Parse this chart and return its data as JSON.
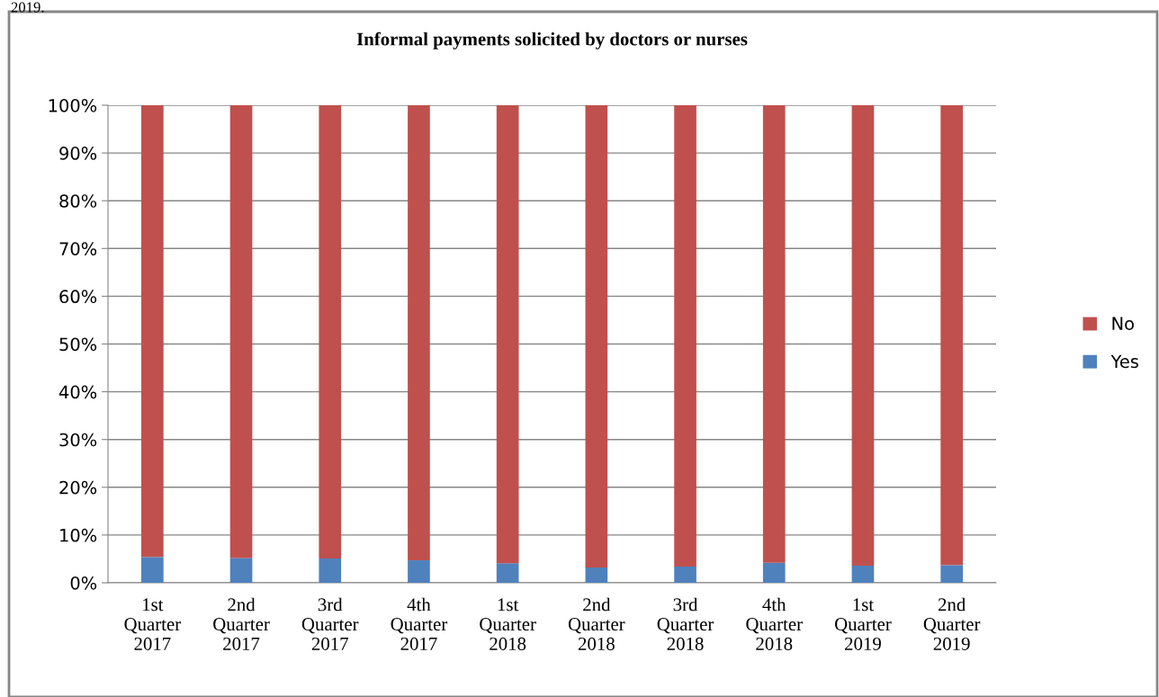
{
  "chart_data": {
    "type": "bar",
    "title": "Informal payments solicited by doctors or nurses",
    "categories": [
      "1st\nQuarter\n2017",
      "2nd\nQuarter\n2017",
      "3rd\nQuarter\n2017",
      "4th\nQuarter\n2017",
      "1st\nQuarter\n2018",
      "2nd\nQuarter\n2018",
      "3rd\nQuarter\n2018",
      "4th\nQuarter\n2018",
      "1st\nQuarter\n2019",
      "2nd\nQuarter\n2019"
    ],
    "stacked": true,
    "series": [
      {
        "name": "Yes",
        "color": "#4f81bd",
        "values": [
          5.4,
          5.2,
          5.1,
          4.7,
          4.1,
          3.2,
          3.4,
          4.2,
          3.6,
          3.7
        ]
      },
      {
        "name": "No",
        "color": "#c0504d",
        "values": [
          94.6,
          94.8,
          94.9,
          95.3,
          95.9,
          96.8,
          96.6,
          95.8,
          96.4,
          96.3
        ]
      }
    ],
    "ylim": [
      0,
      100
    ],
    "yticks": [
      {
        "value": 0,
        "label": "0%"
      },
      {
        "value": 10,
        "label": "10%"
      },
      {
        "value": 20,
        "label": "20%"
      },
      {
        "value": 30,
        "label": "30%"
      },
      {
        "value": 40,
        "label": "40%"
      },
      {
        "value": 50,
        "label": "50%"
      },
      {
        "value": 60,
        "label": "60%"
      },
      {
        "value": 70,
        "label": "70%"
      },
      {
        "value": 80,
        "label": "80%"
      },
      {
        "value": 90,
        "label": "90%"
      },
      {
        "value": 100,
        "label": "100%"
      }
    ],
    "grid": "y",
    "legend": "right",
    "annotations": [
      "2019."
    ]
  }
}
